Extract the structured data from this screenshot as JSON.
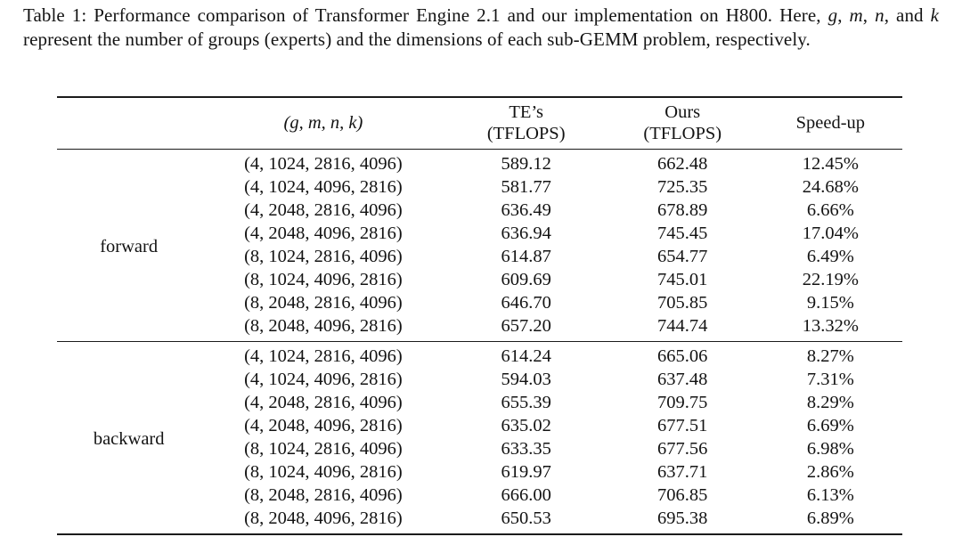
{
  "page": {
    "background": "#ffffff",
    "text_color": "#131313",
    "rule_color": "#1b1b1b"
  },
  "caption": {
    "segments": [
      {
        "text": "Table 1: Performance comparison of Transformer Engine 2.1 and our implementation on H800. Here, "
      },
      {
        "text": "g"
      },
      {
        "text": ", "
      },
      {
        "text": "m"
      },
      {
        "text": ", "
      },
      {
        "text": "n"
      },
      {
        "text": ", and "
      },
      {
        "text": "k"
      },
      {
        "text": " represent the number of groups (experts) and the dimensions of each sub-GEMM problem, respectively."
      }
    ]
  },
  "table": {
    "headers": {
      "row_label": "",
      "config": "(g, m, n, k)",
      "te_line1": "TE’s",
      "te_line2": "(TFLOPS)",
      "ours_line1": "Ours",
      "ours_line2": "(TFLOPS)",
      "speedup": "Speed-up"
    },
    "groups": [
      {
        "label": "forward",
        "rows": [
          {
            "config": "(4, 1024, 2816, 4096)",
            "te": "589.12",
            "ours": "662.48",
            "speedup": "12.45%"
          },
          {
            "config": "(4, 1024, 4096, 2816)",
            "te": "581.77",
            "ours": "725.35",
            "speedup": "24.68%"
          },
          {
            "config": "(4, 2048, 2816, 4096)",
            "te": "636.49",
            "ours": "678.89",
            "speedup": "6.66%"
          },
          {
            "config": "(4, 2048, 4096, 2816)",
            "te": "636.94",
            "ours": "745.45",
            "speedup": "17.04%"
          },
          {
            "config": "(8, 1024, 2816, 4096)",
            "te": "614.87",
            "ours": "654.77",
            "speedup": "6.49%"
          },
          {
            "config": "(8, 1024, 4096, 2816)",
            "te": "609.69",
            "ours": "745.01",
            "speedup": "22.19%"
          },
          {
            "config": "(8, 2048, 2816, 4096)",
            "te": "646.70",
            "ours": "705.85",
            "speedup": "9.15%"
          },
          {
            "config": "(8, 2048, 4096, 2816)",
            "te": "657.20",
            "ours": "744.74",
            "speedup": "13.32%"
          }
        ]
      },
      {
        "label": "backward",
        "rows": [
          {
            "config": "(4, 1024, 2816, 4096)",
            "te": "614.24",
            "ours": "665.06",
            "speedup": "8.27%"
          },
          {
            "config": "(4, 1024, 4096, 2816)",
            "te": "594.03",
            "ours": "637.48",
            "speedup": "7.31%"
          },
          {
            "config": "(4, 2048, 2816, 4096)",
            "te": "655.39",
            "ours": "709.75",
            "speedup": "8.29%"
          },
          {
            "config": "(4, 2048, 4096, 2816)",
            "te": "635.02",
            "ours": "677.51",
            "speedup": "6.69%"
          },
          {
            "config": "(8, 1024, 2816, 4096)",
            "te": "633.35",
            "ours": "677.56",
            "speedup": "6.98%"
          },
          {
            "config": "(8, 1024, 4096, 2816)",
            "te": "619.97",
            "ours": "637.71",
            "speedup": "2.86%"
          },
          {
            "config": "(8, 2048, 2816, 4096)",
            "te": "666.00",
            "ours": "706.85",
            "speedup": "6.13%"
          },
          {
            "config": "(8, 2048, 4096, 2816)",
            "te": "650.53",
            "ours": "695.38",
            "speedup": "6.89%"
          }
        ]
      }
    ]
  }
}
